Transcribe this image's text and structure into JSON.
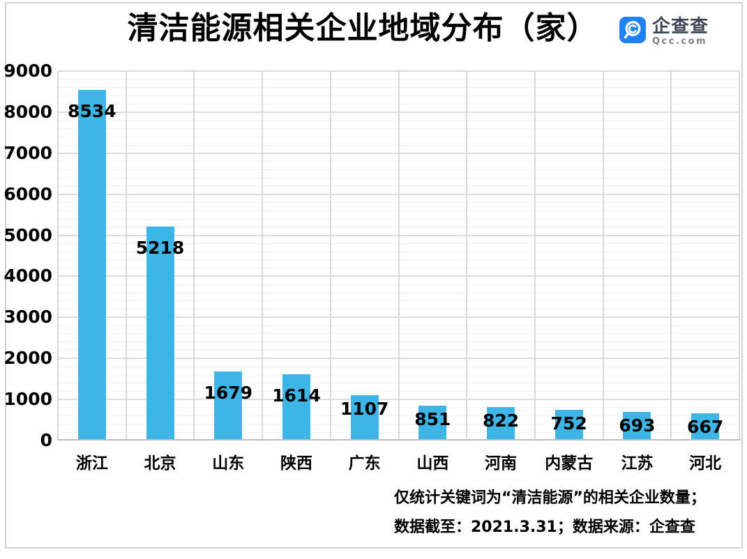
{
  "chart_data": {
    "type": "bar",
    "title": "清洁能源相关企业地域分布（家）",
    "categories": [
      "浙江",
      "北京",
      "山东",
      "陕西",
      "广东",
      "山西",
      "河南",
      "内蒙古",
      "江苏",
      "河北"
    ],
    "values": [
      8534,
      5218,
      1679,
      1614,
      1107,
      851,
      822,
      752,
      693,
      667
    ],
    "xlabel": "",
    "ylabel": "",
    "ylim": [
      0,
      9000
    ],
    "y_ticks": [
      0,
      1000,
      2000,
      3000,
      4000,
      5000,
      6000,
      7000,
      8000,
      9000
    ],
    "y_major_step": 1000,
    "y_minor_step": 200,
    "grid": "horizontal major+minor, vertical category separators",
    "legend": "none",
    "bar_color": "#3db5e6",
    "value_label_style": "bold black, inside top of bar"
  },
  "logo": {
    "brand": "企查查",
    "domain": "Qcc.com",
    "icon": "qcc-magnifier-icon",
    "icon_color": "#1e82f5"
  },
  "footer": {
    "line1": "仅统计关键词为“清洁能源”的相关企业数量；",
    "line2": "数据截至：2021.3.31；数据来源：企查查"
  },
  "colors": {
    "bar": "#3db5e6",
    "logo_blue": "#1e82f5",
    "gridline_major": "#dcdcdc",
    "gridline_minor": "#f2f2f2",
    "axis_line": "#bdbdbd",
    "frame_border": "#d2d2d2",
    "text": "#000000"
  }
}
